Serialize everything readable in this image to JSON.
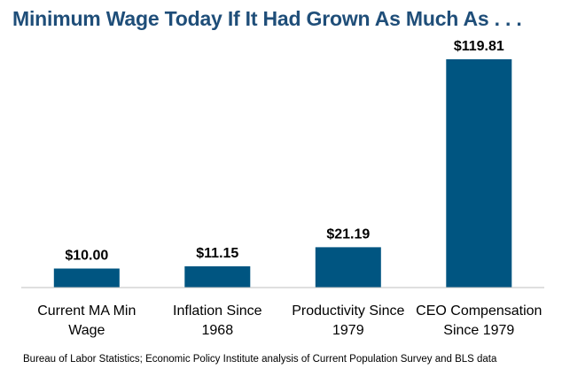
{
  "colors": {
    "title": "#1F4E79",
    "bar": "#005581",
    "axis": "#BFBFBF",
    "text": "#000000"
  },
  "chart_data": {
    "type": "bar",
    "title": "Minimum Wage Today If It Had Grown As Much As  . . .",
    "categories": [
      [
        "Current MA Min",
        "Wage"
      ],
      [
        "Inflation Since",
        "1968"
      ],
      [
        "Productivity Since",
        "1979"
      ],
      [
        "CEO Compensation",
        "Since 1979"
      ]
    ],
    "values": [
      10.0,
      11.15,
      21.19,
      119.81
    ],
    "data_labels": [
      "$10.00",
      "$11.15",
      "$21.19",
      "$119.81"
    ],
    "ylim": [
      0,
      119.81
    ],
    "xlabel": "",
    "ylabel": "",
    "grid": false,
    "legend": "none"
  },
  "source": "Bureau of Labor Statistics; Economic Policy Institute analysis of Current Population Survey and BLS data"
}
